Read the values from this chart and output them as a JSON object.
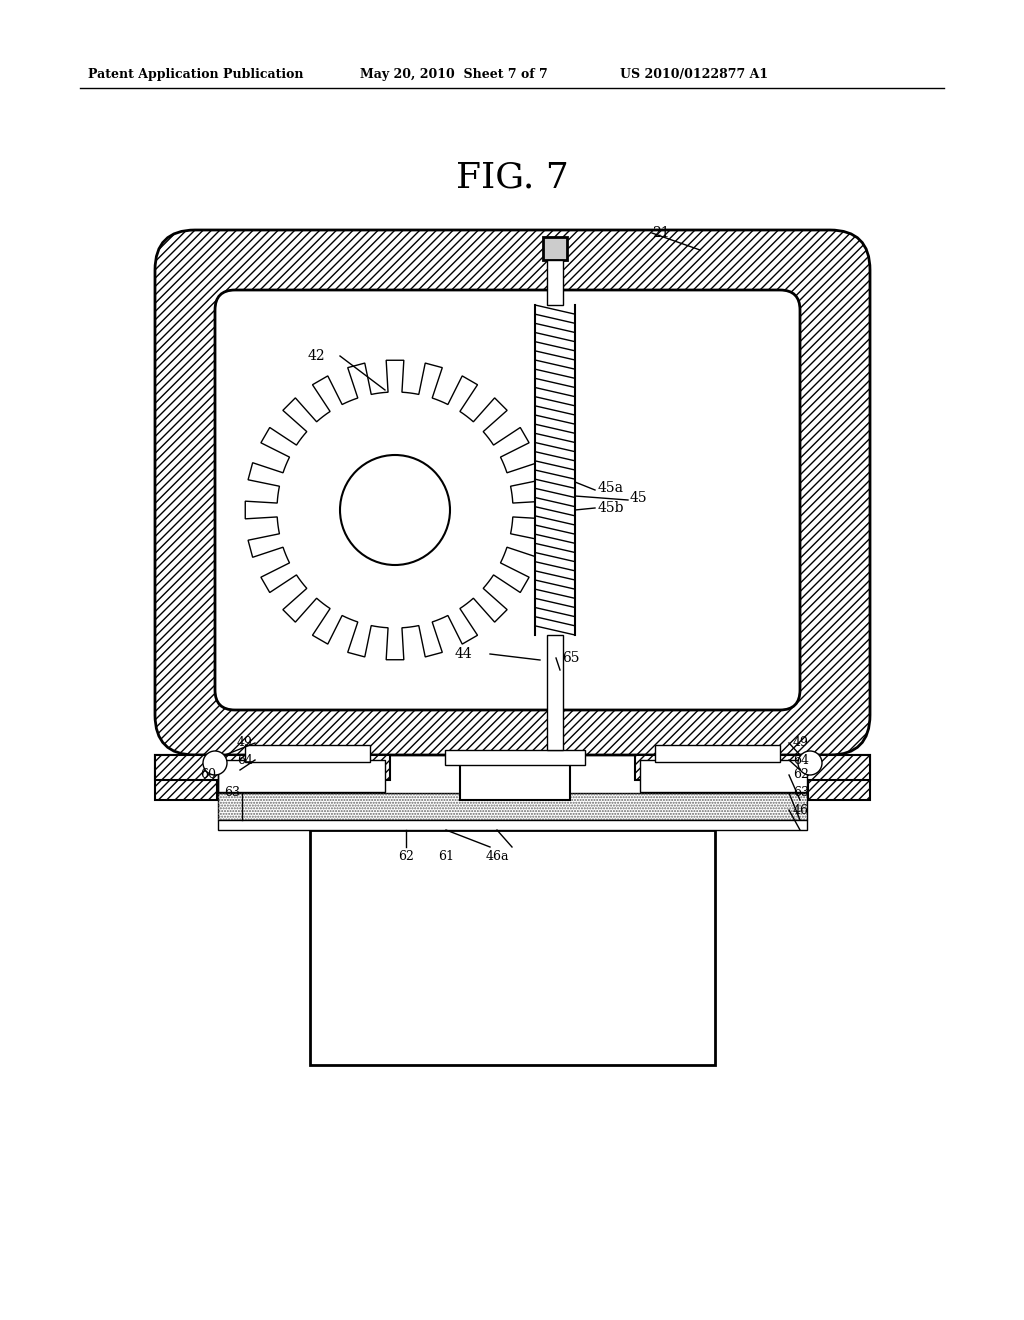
{
  "header_left": "Patent Application Publication",
  "header_center": "May 20, 2010  Sheet 7 of 7",
  "header_right": "US 2010/0122877 A1",
  "figure_title": "FIG. 7",
  "background_color": "#ffffff",
  "line_color": "#000000"
}
